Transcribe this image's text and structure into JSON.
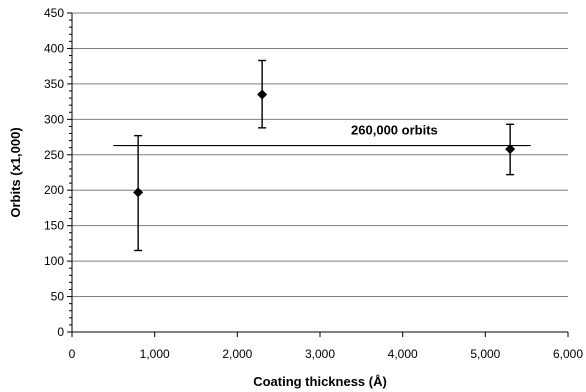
{
  "chart_data": {
    "type": "scatter",
    "title": "",
    "xlabel": "Coating thickness (Å)",
    "ylabel": "Orbits (x1,000)",
    "xlim": [
      0,
      6000
    ],
    "ylim": [
      0,
      450
    ],
    "x_ticks": [
      0,
      1000,
      2000,
      3000,
      4000,
      5000,
      6000
    ],
    "x_tick_labels": [
      "0",
      "1,000",
      "2,000",
      "3,000",
      "4,000",
      "5,000",
      "6,000"
    ],
    "y_ticks": [
      0,
      50,
      100,
      150,
      200,
      250,
      300,
      350,
      400,
      450
    ],
    "y_tick_labels": [
      "0",
      "50",
      "100",
      "150",
      "200",
      "250",
      "300",
      "350",
      "400",
      "450"
    ],
    "grid": "horizontal",
    "legend": "none",
    "points": [
      {
        "x": 800,
        "y": 197,
        "ylow": 115,
        "yhigh": 277
      },
      {
        "x": 2300,
        "y": 335,
        "ylow": 288,
        "yhigh": 383
      },
      {
        "x": 5300,
        "y": 258,
        "ylow": 222,
        "yhigh": 293
      }
    ],
    "reference_line": {
      "y": 263,
      "x_start": 500,
      "x_end": 5550,
      "label": "260,000 orbits"
    }
  }
}
